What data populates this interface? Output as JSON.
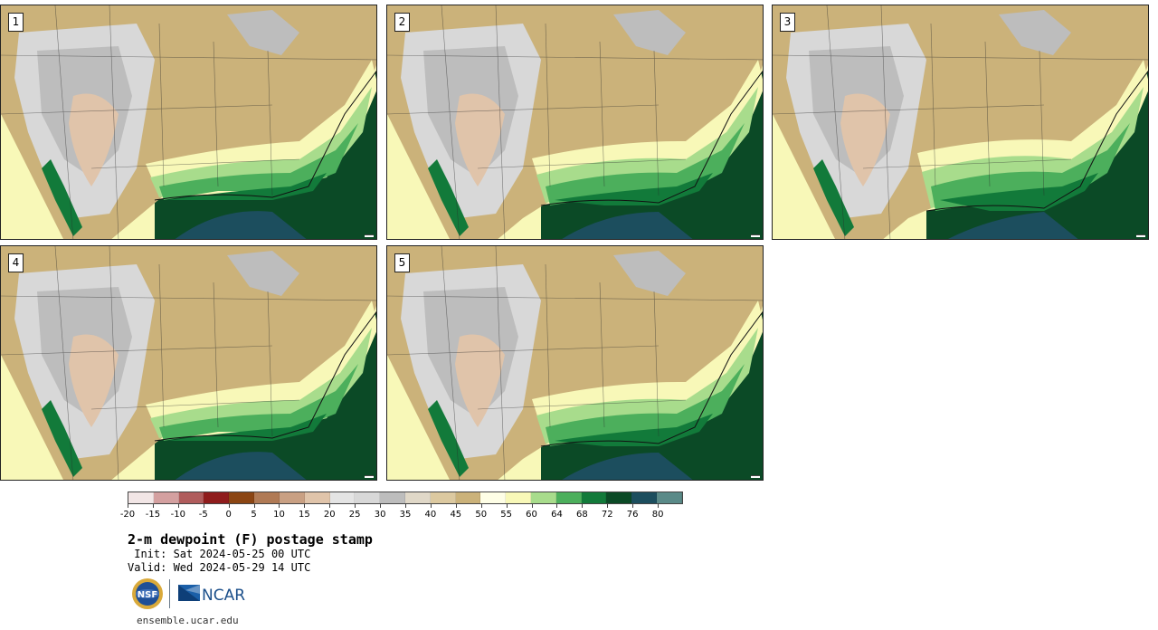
{
  "panels": [
    {
      "label": "1"
    },
    {
      "label": "2"
    },
    {
      "label": "3"
    },
    {
      "label": "4"
    },
    {
      "label": "5"
    }
  ],
  "colorbar": {
    "colors": [
      "#f2e6e6",
      "#d4a0a0",
      "#b05c5c",
      "#8f1c1c",
      "#8b4513",
      "#b07a55",
      "#c9a083",
      "#e0c4aa",
      "#e4e4e4",
      "#d8d8d8",
      "#bdbdbd",
      "#e0d8c8",
      "#dcc9a0",
      "#cbb27a",
      "#fefee6",
      "#f8f8b8",
      "#a8dc8c",
      "#4caf5c",
      "#127a3a",
      "#0b4a26",
      "#1c4e5e",
      "#5a8a88"
    ],
    "tick_labels": [
      "-20",
      "-15",
      "-10",
      "-5",
      "0",
      "5",
      "10",
      "15",
      "20",
      "25",
      "30",
      "35",
      "40",
      "45",
      "50",
      "55",
      "60",
      "64",
      "68",
      "72",
      "76",
      "80"
    ]
  },
  "title": "2-m dewpoint (F) postage stamp",
  "init_line": " Init: Sat 2024-05-25 00 UTC",
  "valid_line": "Valid: Wed 2024-05-29 14 UTC",
  "logos": {
    "nsf": "NSF",
    "ncar": "NCAR"
  },
  "site_url": "ensemble.ucar.edu"
}
